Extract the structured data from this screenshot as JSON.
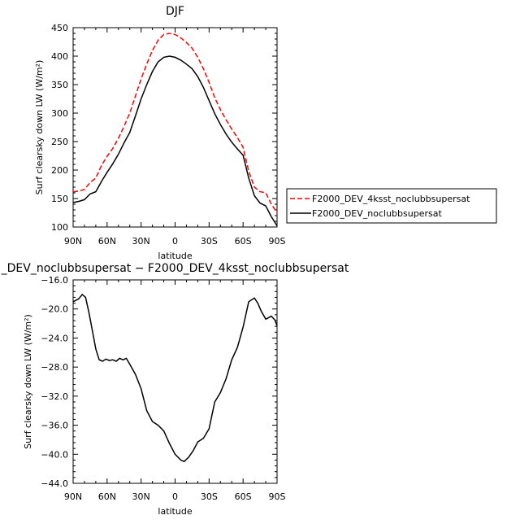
{
  "chart_data": [
    {
      "type": "line",
      "title": "DJF",
      "xlabel": "latitude",
      "ylabel": "Surf clearsky down LW (W/m²)",
      "xlim": [
        90,
        -90
      ],
      "ylim": [
        100,
        450
      ],
      "x_ticks": [
        90,
        60,
        30,
        0,
        -30,
        -60,
        -90
      ],
      "x_tick_labels": [
        "90N",
        "60N",
        "30N",
        "0",
        "30S",
        "60S",
        "90S"
      ],
      "y_ticks": [
        100,
        150,
        200,
        250,
        300,
        350,
        400,
        450
      ],
      "y_tick_labels": [
        "100",
        "150",
        "200",
        "250",
        "300",
        "350",
        "400",
        "450"
      ],
      "grid": false,
      "legend_position": "right",
      "x": [
        90,
        85,
        80,
        75,
        70,
        65,
        60,
        55,
        50,
        45,
        40,
        35,
        30,
        25,
        20,
        15,
        10,
        5,
        0,
        -5,
        -10,
        -15,
        -20,
        -25,
        -30,
        -35,
        -40,
        -45,
        -50,
        -55,
        -60,
        -65,
        -70,
        -75,
        -80,
        -85,
        -90
      ],
      "series": [
        {
          "name": "F2000_DEV_4ksst_noclubbsupersat",
          "color": "#ff0000",
          "dash": "dashed",
          "values": [
            162,
            163,
            166,
            178,
            186,
            208,
            224,
            238,
            256,
            277,
            300,
            330,
            360,
            386,
            410,
            428,
            438,
            440,
            438,
            432,
            424,
            414,
            398,
            378,
            354,
            327,
            306,
            288,
            272,
            257,
            240,
            198,
            170,
            162,
            160,
            140,
            125
          ]
        },
        {
          "name": "F2000_DEV_noclubbsupersat",
          "color": "#000000",
          "dash": "solid",
          "values": [
            143,
            145,
            148,
            158,
            162,
            180,
            196,
            211,
            228,
            248,
            266,
            295,
            325,
            350,
            373,
            390,
            398,
            400,
            398,
            393,
            386,
            378,
            364,
            345,
            322,
            299,
            280,
            263,
            249,
            237,
            226,
            186,
            155,
            142,
            137,
            118,
            102
          ]
        }
      ]
    },
    {
      "type": "line",
      "title": "_DEV_noclubbsupersat − F2000_DEV_4ksst_noclubbsupersat",
      "xlabel": "latitude",
      "ylabel": "Surf clearsky down LW (W/m²)",
      "xlim": [
        90,
        -90
      ],
      "ylim": [
        -44,
        -16
      ],
      "x_ticks": [
        90,
        60,
        30,
        0,
        -30,
        -60,
        -90
      ],
      "x_tick_labels": [
        "90N",
        "60N",
        "30N",
        "0",
        "30S",
        "60S",
        "90S"
      ],
      "y_ticks": [
        -44,
        -40,
        -36,
        -32,
        -28,
        -24,
        -20,
        -16
      ],
      "y_tick_labels": [
        "−44.0",
        "−40.0",
        "−36.0",
        "−32.0",
        "−28.0",
        "−24.0",
        "−20.0",
        "−16.0"
      ],
      "grid": false,
      "x": [
        90,
        85,
        82,
        79,
        76,
        73,
        70,
        67,
        64,
        61,
        58,
        55,
        52,
        49,
        46,
        43,
        40,
        35,
        30,
        25,
        20,
        15,
        10,
        5,
        0,
        -5,
        -8,
        -12,
        -16,
        -20,
        -25,
        -30,
        -35,
        -40,
        -45,
        -50,
        -55,
        -60,
        -65,
        -70,
        -73,
        -76,
        -80,
        -85,
        -88,
        -90
      ],
      "series": [
        {
          "name": "",
          "color": "#000000",
          "dash": "solid",
          "values": [
            -19.0,
            -18.6,
            -18.0,
            -18.4,
            -20.5,
            -23.0,
            -25.5,
            -27.0,
            -27.2,
            -26.9,
            -27.1,
            -27.0,
            -27.2,
            -26.8,
            -27.0,
            -26.8,
            -27.6,
            -29.0,
            -31.0,
            -34.0,
            -35.5,
            -36.0,
            -36.8,
            -38.5,
            -40.0,
            -40.8,
            -41.0,
            -40.4,
            -39.5,
            -38.3,
            -37.8,
            -36.5,
            -32.8,
            -31.5,
            -29.6,
            -27.0,
            -25.3,
            -22.5,
            -19.0,
            -18.5,
            -19.2,
            -20.3,
            -21.4,
            -21.0,
            -21.5,
            -22.3
          ]
        }
      ]
    }
  ]
}
